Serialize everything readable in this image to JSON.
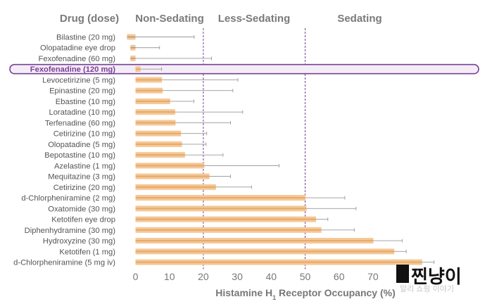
{
  "chart_data": {
    "type": "bar",
    "orientation": "horizontal",
    "header": {
      "drug_label": "Drug (dose)",
      "zones": [
        "Non-Sedating",
        "Less-Sedating",
        "Sedating"
      ]
    },
    "categories": [
      "Bilastine (20 mg)",
      "Olopatadine eye drop",
      "Fexofenadine (60 mg)",
      "Fexofenadine (120 mg)",
      "Levocetirizine (5 mg)",
      "Epinastine (20 mg)",
      "Ebastine (10 mg)",
      "Loratadine (10 mg)",
      "Terfenadine (60 mg)",
      "Cetirizine (10 mg)",
      "Olopatadine (5 mg)",
      "Bepotastine (10 mg)",
      "Azelastine (1 mg)",
      "Mequitazine (3 mg)",
      "Cetirizine (20 mg)",
      "d-Chlorpheniramine (2 mg)",
      "Oxatomide (30 mg)",
      "Ketotifen eye drop",
      "Diphenhydramine (30 mg)",
      "Hydroxyzine (30 mg)",
      "Ketotifen (1 mg)",
      "d-Chlorpheniramine (5 mg iv)"
    ],
    "values": [
      -2.5,
      -1.5,
      -1.5,
      1.5,
      7.8,
      8,
      10.2,
      11.7,
      11.8,
      13.4,
      13.7,
      14.6,
      20.3,
      21.8,
      23.7,
      50.1,
      50.4,
      53.2,
      54.8,
      70.1,
      76.3,
      84.5
    ],
    "error_upper": [
      17.3,
      7.1,
      22.4,
      7.7,
      30.2,
      28.7,
      17.2,
      31.6,
      28,
      21,
      20.8,
      25.8,
      42.3,
      28,
      34.2,
      61.7,
      65,
      56.7,
      64.5,
      78.6,
      79.8,
      88
    ],
    "highlighted_category": "Fexofenadine (120 mg)",
    "thresholds": [
      20,
      50
    ],
    "x_ticks": [
      0,
      10,
      20,
      30,
      40,
      50,
      60,
      70
    ],
    "xlim": [
      -2.5,
      84
    ],
    "xlabel": "Histamine H₁ Receptor Occupancy (%)",
    "grid": false,
    "colors": {
      "bar_fill": "#f4c896",
      "bar_stripe": "#e8a868",
      "error_bar": "#999999",
      "threshold_line": "#7b3f98",
      "highlight": "#7b3f98"
    }
  },
  "watermark": {
    "text": "찐냥이",
    "subtext": "알리 쇼핑 이야기"
  }
}
